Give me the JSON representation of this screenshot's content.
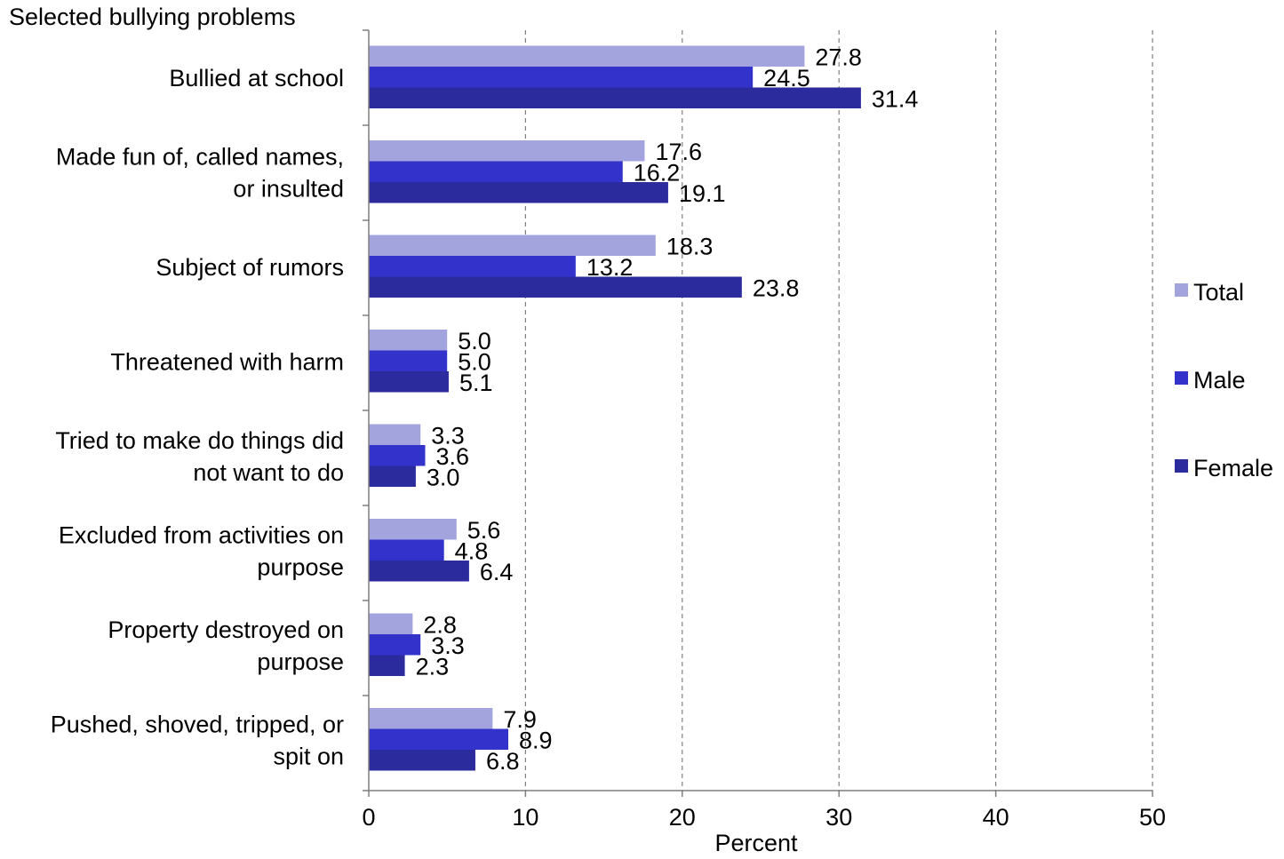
{
  "chart_data": {
    "type": "bar",
    "orientation": "horizontal",
    "title": "Selected bullying problems",
    "xlabel": "Percent",
    "xlim": [
      0,
      50
    ],
    "x_ticks": [
      "0",
      "10",
      "20",
      "30",
      "40",
      "50"
    ],
    "grid": "vertical dashed",
    "legend_position": "right",
    "categories": [
      [
        "Bullied at school"
      ],
      [
        "Made fun of, called names,",
        "or insulted"
      ],
      [
        "Subject of rumors"
      ],
      [
        "Threatened with harm"
      ],
      [
        "Tried to make do things did",
        "not want to do"
      ],
      [
        "Excluded from activities on",
        "purpose"
      ],
      [
        "Property destroyed on",
        "purpose"
      ],
      [
        "Pushed, shoved, tripped, or",
        "spit on"
      ]
    ],
    "series": [
      {
        "name": "Total",
        "color": "#a3a3de",
        "values": [
          27.8,
          17.6,
          18.3,
          5.0,
          3.3,
          5.6,
          2.8,
          7.9
        ],
        "labels": [
          "27.8",
          "17.6",
          "18.3",
          "5.0",
          "3.3",
          "5.6",
          "2.8",
          "7.9"
        ]
      },
      {
        "name": "Male",
        "color": "#3333cc",
        "values": [
          24.5,
          16.2,
          13.2,
          5.0,
          3.6,
          4.8,
          3.3,
          8.9
        ],
        "labels": [
          "24.5",
          "16.2",
          "13.2",
          "5.0",
          "3.6",
          "4.8",
          "3.3",
          "8.9"
        ]
      },
      {
        "name": "Female",
        "color": "#2b2b9e",
        "values": [
          31.4,
          19.1,
          23.8,
          5.1,
          3.0,
          6.4,
          2.3,
          6.8
        ],
        "labels": [
          "31.4",
          "19.1",
          "23.8",
          "5.1",
          "3.0",
          "6.4",
          "2.3",
          "6.8"
        ]
      }
    ]
  }
}
